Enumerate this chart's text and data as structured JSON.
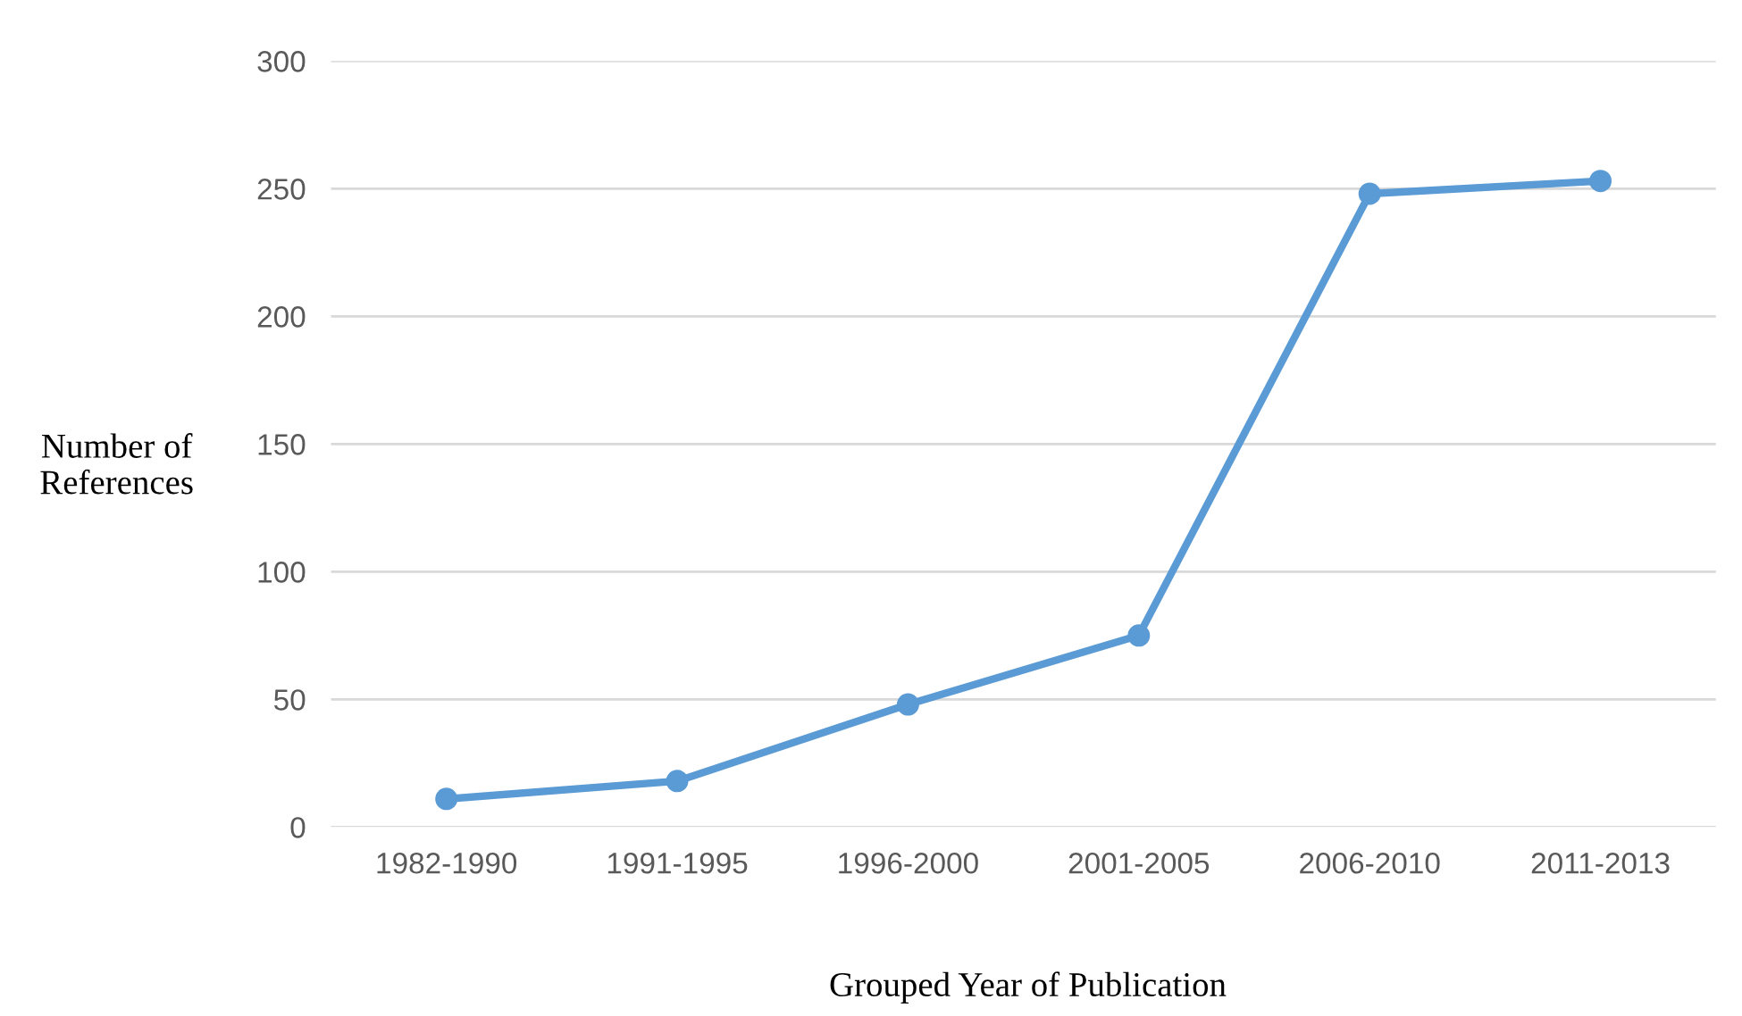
{
  "chart_data": {
    "type": "line",
    "xlabel": "Grouped Year of Publication",
    "ylabel": "Number of\nReferences",
    "categories": [
      "1982-1990",
      "1991-1995",
      "1996-2000",
      "2001-2005",
      "2006-2010",
      "2011-2013"
    ],
    "series": [
      {
        "color": "#5b9bd5",
        "values": [
          11,
          18,
          48,
          75,
          248,
          253
        ]
      }
    ],
    "ylim": [
      0,
      300
    ],
    "yticks": [
      0,
      50,
      100,
      150,
      200,
      250,
      300
    ],
    "grid": "y",
    "marker": "circle",
    "line_style": "solid"
  }
}
